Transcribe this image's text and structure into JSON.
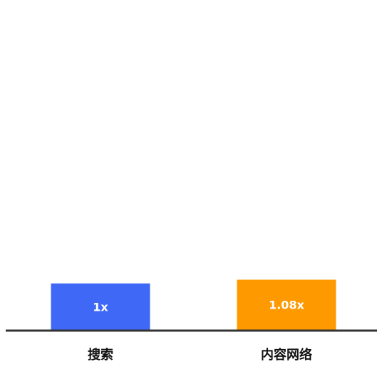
{
  "chart_data": {
    "type": "bar",
    "categories": [
      "搜索",
      "内容网络"
    ],
    "values": [
      1,
      1.08
    ],
    "data_labels": [
      "1x",
      "1.08x"
    ],
    "colors": [
      "#3f68f7",
      "#ff9900"
    ],
    "axis_color": "#333333",
    "title": "",
    "xlabel": "",
    "ylabel": "",
    "ylim": [
      0,
      6.35
    ],
    "grid": false
  }
}
